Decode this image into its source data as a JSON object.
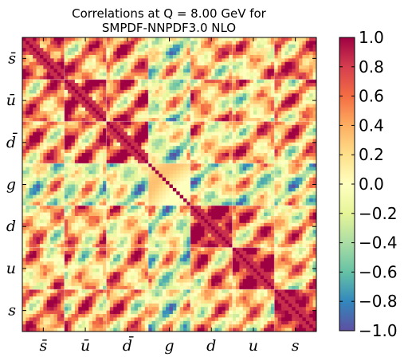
{
  "chart_data": {
    "type": "heatmap",
    "title": "Correlations at Q = 8.00 GeV for",
    "subtitle": "SMPDF-NNPDF3.0 NLO",
    "x_tick_labels": [
      "s̄",
      "ū",
      "d̄",
      "g",
      "d",
      "u",
      "s"
    ],
    "y_tick_labels": [
      "s̄",
      "ū",
      "d̄",
      "g",
      "d",
      "u",
      "s"
    ],
    "block_labels": [
      "sbar",
      "ubar",
      "dbar",
      "g",
      "d",
      "u",
      "s"
    ],
    "colormap": "Spectral (reversed)",
    "value_range": [
      -1.0,
      1.0
    ],
    "colorbar_ticks": [
      "1.0",
      "0.8",
      "0.6",
      "0.4",
      "0.2",
      "0.0",
      "−0.2",
      "−0.4",
      "−0.6",
      "−0.8",
      "−1.0"
    ],
    "colorbar_values": [
      1.0,
      0.8,
      0.6,
      0.4,
      0.2,
      0.0,
      -0.2,
      -0.4,
      -0.6,
      -0.8,
      -1.0
    ],
    "diagonal_value": 1.0,
    "block_correlation_estimate": [
      [
        1.0,
        0.5,
        0.5,
        -0.1,
        0.3,
        0.3,
        0.6
      ],
      [
        0.5,
        1.0,
        0.6,
        -0.1,
        0.4,
        0.2,
        0.4
      ],
      [
        0.5,
        0.6,
        1.0,
        -0.2,
        0.2,
        0.4,
        0.4
      ],
      [
        -0.1,
        -0.1,
        -0.2,
        1.0,
        -0.1,
        -0.1,
        -0.1
      ],
      [
        0.3,
        0.4,
        0.2,
        -0.1,
        1.0,
        0.5,
        0.3
      ],
      [
        0.3,
        0.2,
        0.4,
        -0.1,
        0.5,
        1.0,
        0.3
      ],
      [
        0.6,
        0.4,
        0.4,
        -0.1,
        0.3,
        0.3,
        1.0
      ]
    ]
  },
  "colors": {
    "low": "#5e4fa2",
    "mid": "#ffffbf",
    "high": "#9e0142"
  }
}
